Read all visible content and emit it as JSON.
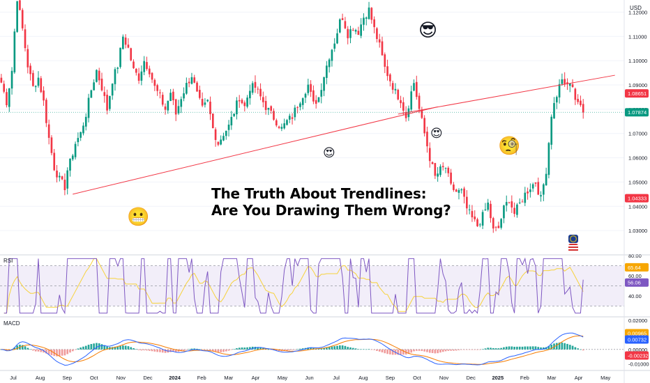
{
  "chart_data": {
    "type": "candlestick",
    "title": "The Truth About Trendlines:",
    "subtitle": "Are You Drawing Them Wrong?",
    "currency": "USD",
    "price_axis": {
      "ylim": [
        1.02,
        1.125
      ],
      "ticks": [
        "1.12000",
        "1.11000",
        "1.10000",
        "1.09000",
        "1.08000",
        "1.07000",
        "1.06000",
        "1.05000",
        "1.04000",
        "1.03000"
      ]
    },
    "price_markers": [
      {
        "value": "1.08651",
        "color": "#f23645"
      },
      {
        "value": "1.07874",
        "color": "#089981"
      },
      {
        "value": "1.04333",
        "color": "#f23645"
      }
    ],
    "time_axis": {
      "labels": [
        "Jul",
        "Aug",
        "Sep",
        "Oct",
        "Nov",
        "Dec",
        "2024",
        "Feb",
        "Mar",
        "Apr",
        "May",
        "Jun",
        "Jul",
        "Aug",
        "Sep",
        "Oct",
        "Nov",
        "Dec",
        "2025",
        "Feb",
        "Mar",
        "Apr",
        "May"
      ]
    },
    "price_path": [
      [
        0,
        1.091
      ],
      [
        2,
        1.083
      ],
      [
        4,
        1.096
      ],
      [
        5,
        1.112
      ],
      [
        6,
        1.126
      ],
      [
        8,
        1.113
      ],
      [
        10,
        1.098
      ],
      [
        12,
        1.089
      ],
      [
        14,
        1.093
      ],
      [
        16,
        1.083
      ],
      [
        18,
        1.068
      ],
      [
        20,
        1.056
      ],
      [
        22,
        1.051
      ],
      [
        24,
        1.048
      ],
      [
        25,
        1.055
      ],
      [
        26,
        1.058
      ],
      [
        28,
        1.066
      ],
      [
        30,
        1.07
      ],
      [
        32,
        1.078
      ],
      [
        34,
        1.088
      ],
      [
        36,
        1.096
      ],
      [
        38,
        1.089
      ],
      [
        40,
        1.08
      ],
      [
        42,
        1.092
      ],
      [
        44,
        1.098
      ],
      [
        46,
        1.11
      ],
      [
        48,
        1.105
      ],
      [
        50,
        1.096
      ],
      [
        52,
        1.093
      ],
      [
        54,
        1.1
      ],
      [
        56,
        1.096
      ],
      [
        58,
        1.089
      ],
      [
        60,
        1.085
      ],
      [
        62,
        1.08
      ],
      [
        64,
        1.087
      ],
      [
        66,
        1.078
      ],
      [
        68,
        1.085
      ],
      [
        70,
        1.09
      ],
      [
        72,
        1.094
      ],
      [
        74,
        1.086
      ],
      [
        76,
        1.08
      ],
      [
        78,
        1.083
      ],
      [
        80,
        1.072
      ],
      [
        82,
        1.066
      ],
      [
        84,
        1.07
      ],
      [
        86,
        1.073
      ],
      [
        88,
        1.079
      ],
      [
        90,
        1.085
      ],
      [
        92,
        1.081
      ],
      [
        94,
        1.089
      ],
      [
        96,
        1.089
      ],
      [
        98,
        1.085
      ],
      [
        100,
        1.081
      ],
      [
        102,
        1.078
      ],
      [
        104,
        1.075
      ],
      [
        106,
        1.072
      ],
      [
        108,
        1.075
      ],
      [
        110,
        1.077
      ],
      [
        112,
        1.082
      ],
      [
        114,
        1.086
      ],
      [
        116,
        1.09
      ],
      [
        118,
        1.082
      ],
      [
        120,
        1.085
      ],
      [
        122,
        1.094
      ],
      [
        124,
        1.102
      ],
      [
        126,
        1.108
      ],
      [
        128,
        1.116
      ],
      [
        129,
        1.118
      ],
      [
        131,
        1.111
      ],
      [
        133,
        1.114
      ],
      [
        135,
        1.112
      ],
      [
        137,
        1.118
      ],
      [
        139,
        1.121
      ],
      [
        141,
        1.113
      ],
      [
        143,
        1.106
      ],
      [
        145,
        1.097
      ],
      [
        147,
        1.092
      ],
      [
        149,
        1.087
      ],
      [
        151,
        1.084
      ],
      [
        153,
        1.077
      ],
      [
        155,
        1.087
      ],
      [
        156,
        1.091
      ],
      [
        158,
        1.08
      ],
      [
        160,
        1.07
      ],
      [
        162,
        1.06
      ],
      [
        164,
        1.052
      ],
      [
        166,
        1.055
      ],
      [
        168,
        1.056
      ],
      [
        170,
        1.048
      ],
      [
        172,
        1.046
      ],
      [
        174,
        1.046
      ],
      [
        176,
        1.039
      ],
      [
        178,
        1.035
      ],
      [
        180,
        1.032
      ],
      [
        182,
        1.036
      ],
      [
        184,
        1.041
      ],
      [
        186,
        1.03
      ],
      [
        188,
        1.031
      ],
      [
        190,
        1.039
      ],
      [
        192,
        1.043
      ],
      [
        194,
        1.037
      ],
      [
        196,
        1.041
      ],
      [
        198,
        1.045
      ],
      [
        200,
        1.048
      ],
      [
        202,
        1.05
      ],
      [
        204,
        1.043
      ],
      [
        206,
        1.055
      ],
      [
        208,
        1.078
      ],
      [
        210,
        1.086
      ],
      [
        212,
        1.093
      ],
      [
        213,
        1.089
      ],
      [
        215,
        1.091
      ],
      [
        217,
        1.085
      ],
      [
        219,
        1.082
      ],
      [
        220,
        1.078
      ]
    ],
    "trendlines": [
      {
        "name": "Lower trendline",
        "from": [
          27,
          1.045
        ],
        "to": [
          165,
          1.081
        ]
      },
      {
        "name": "Upper trendline",
        "from": [
          150,
          1.078
        ],
        "to": [
          232,
          1.094
        ]
      }
    ],
    "rsi": {
      "label": "RSI",
      "ylim": [
        20,
        80
      ],
      "ticks": [
        "80.00",
        "60.00",
        "40.00"
      ],
      "bands": [
        30,
        70
      ],
      "markers": [
        {
          "value": "65.64",
          "color": "#f7a600"
        },
        {
          "value": "56.06",
          "color": "#7e57c2"
        }
      ]
    },
    "macd": {
      "label": "MACD",
      "ylim": [
        -0.014,
        0.022
      ],
      "ticks": [
        "0.02000",
        "0.00000",
        "-0.01000"
      ],
      "markers": [
        {
          "value": "0.00965",
          "color": "#f7a600"
        },
        {
          "value": "0.00732",
          "color": "#2962ff"
        },
        {
          "value": "-0.00232",
          "color": "#f23645"
        }
      ]
    }
  },
  "emojis": {
    "cool": "😎",
    "heart_eyes_1": "😍",
    "heart_eyes_2": "😍",
    "monocle": "🧐",
    "grimace": "😬"
  },
  "colors": {
    "up": "#089981",
    "down": "#f23645",
    "trendline": "#f23645",
    "rsi_line": "#7e57c2",
    "rsi_ma": "#f7d23a",
    "macd_line": "#2962ff",
    "signal_line": "#f57c00"
  }
}
